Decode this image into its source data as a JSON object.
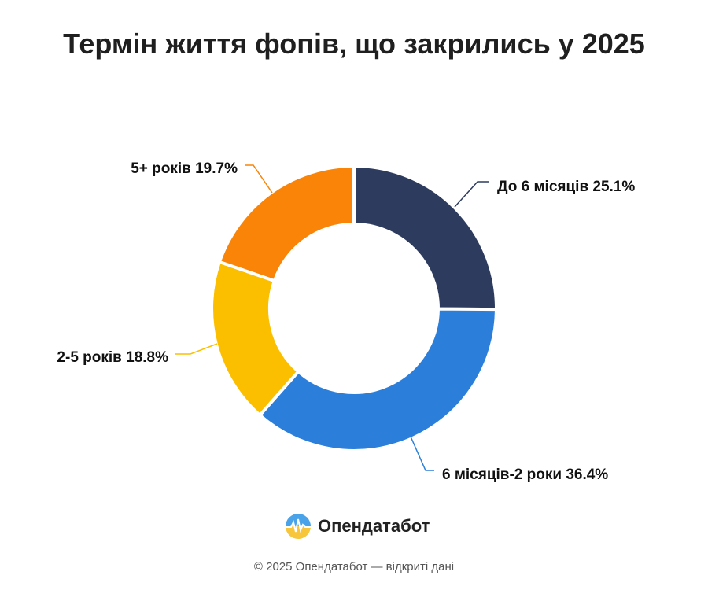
{
  "chart_data": {
    "type": "pie",
    "title": "Термін життя фопів, що закрились у 2025",
    "donut": true,
    "slices": [
      {
        "label": "До 6 місяців",
        "value": 25.1,
        "text": "До 6 місяців 25.1%",
        "color": "#2d3b5e",
        "line_color": "#2d3b5e"
      },
      {
        "label": "6 місяців-2 роки",
        "value": 36.4,
        "text": "6 місяців-2 роки 36.4%",
        "color": "#2b7fdb",
        "line_color": "#2b7fdb"
      },
      {
        "label": "2-5 років",
        "value": 18.8,
        "text": "2-5 років 18.8%",
        "color": "#fbbf00",
        "line_color": "#fbbf00"
      },
      {
        "label": "5+ років",
        "value": 19.7,
        "text": "5+ років 19.7%",
        "color": "#f98407",
        "line_color": "#f98407"
      }
    ]
  },
  "brand": {
    "name": "Опендатабот",
    "logo_icon": "opendatabot-logo-icon",
    "logo_colors": [
      "#4aa3e8",
      "#f7c63b"
    ]
  },
  "footer": {
    "copyright": "© 2025 Опендатабот — відкриті дані"
  }
}
